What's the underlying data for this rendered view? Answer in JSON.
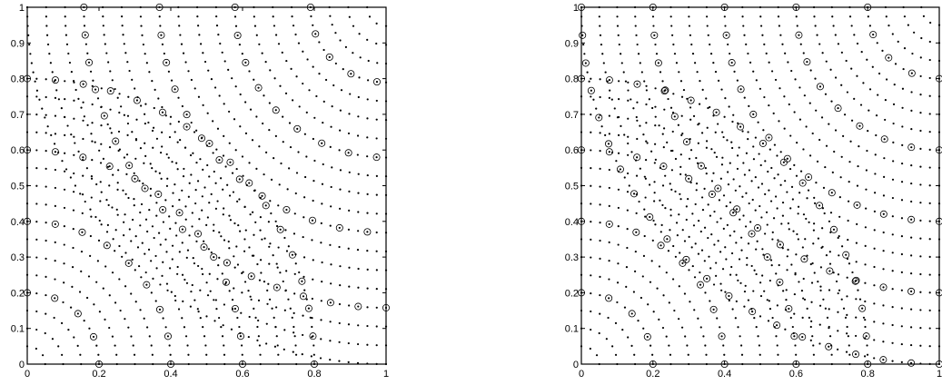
{
  "chart_data": [
    {
      "type": "scatter",
      "title": "",
      "xlabel": "",
      "ylabel": "",
      "xlim": [
        0,
        1
      ],
      "ylim": [
        0,
        1
      ],
      "xticks": [
        0,
        0.2,
        0.4,
        0.6,
        0.8,
        1
      ],
      "xtick_labels": [
        "0",
        "0.2",
        "0.4",
        "0.6",
        "0.8",
        "1"
      ],
      "yticks": [
        0,
        0.1,
        0.2,
        0.3,
        0.4,
        0.5,
        0.6,
        0.7,
        0.8,
        0.9,
        1
      ],
      "ytick_labels": [
        "0",
        "0.1",
        "0.2",
        "0.3",
        "0.4",
        "0.5",
        "0.6",
        "0.7",
        "0.8",
        "0.9",
        "1"
      ],
      "grid": false,
      "legend": "none",
      "regions": [
        {
          "corner": [
            0,
            0
          ],
          "radius": 0.8,
          "rings": 16,
          "dot_spacing": 0.026,
          "circle_every": 4
        },
        {
          "corner": [
            1,
            1
          ],
          "radius": 1.0,
          "rings": 19,
          "dot_spacing": 0.026,
          "circle_every": 4
        }
      ],
      "colors": {
        "marker": "#000000"
      }
    },
    {
      "type": "scatter",
      "title": "",
      "xlabel": "",
      "ylabel": "",
      "xlim": [
        0,
        1
      ],
      "ylim": [
        0,
        1
      ],
      "xticks": [
        0,
        0.2,
        0.4,
        0.6,
        0.8,
        1
      ],
      "xtick_labels": [
        "0",
        "0.2",
        "0.4",
        "0.6",
        "0.8",
        "1"
      ],
      "yticks": [
        0,
        0.1,
        0.2,
        0.3,
        0.4,
        0.5,
        0.6,
        0.7,
        0.8,
        0.9,
        1
      ],
      "ytick_labels": [
        "0",
        "0.1",
        "0.2",
        "0.3",
        "0.4",
        "0.5",
        "0.6",
        "0.7",
        "0.8",
        "0.9",
        "1"
      ],
      "grid": false,
      "legend": "none",
      "regions": [
        {
          "corner": [
            0,
            0
          ],
          "radius": 0.8,
          "rings": 16,
          "dot_spacing": 0.026,
          "circle_every": 4
        },
        {
          "corner": [
            1,
            1
          ],
          "radius": 1.0,
          "rings": 20,
          "dot_spacing": 0.026,
          "circle_every": 4
        }
      ],
      "colors": {
        "marker": "#000000"
      }
    }
  ]
}
